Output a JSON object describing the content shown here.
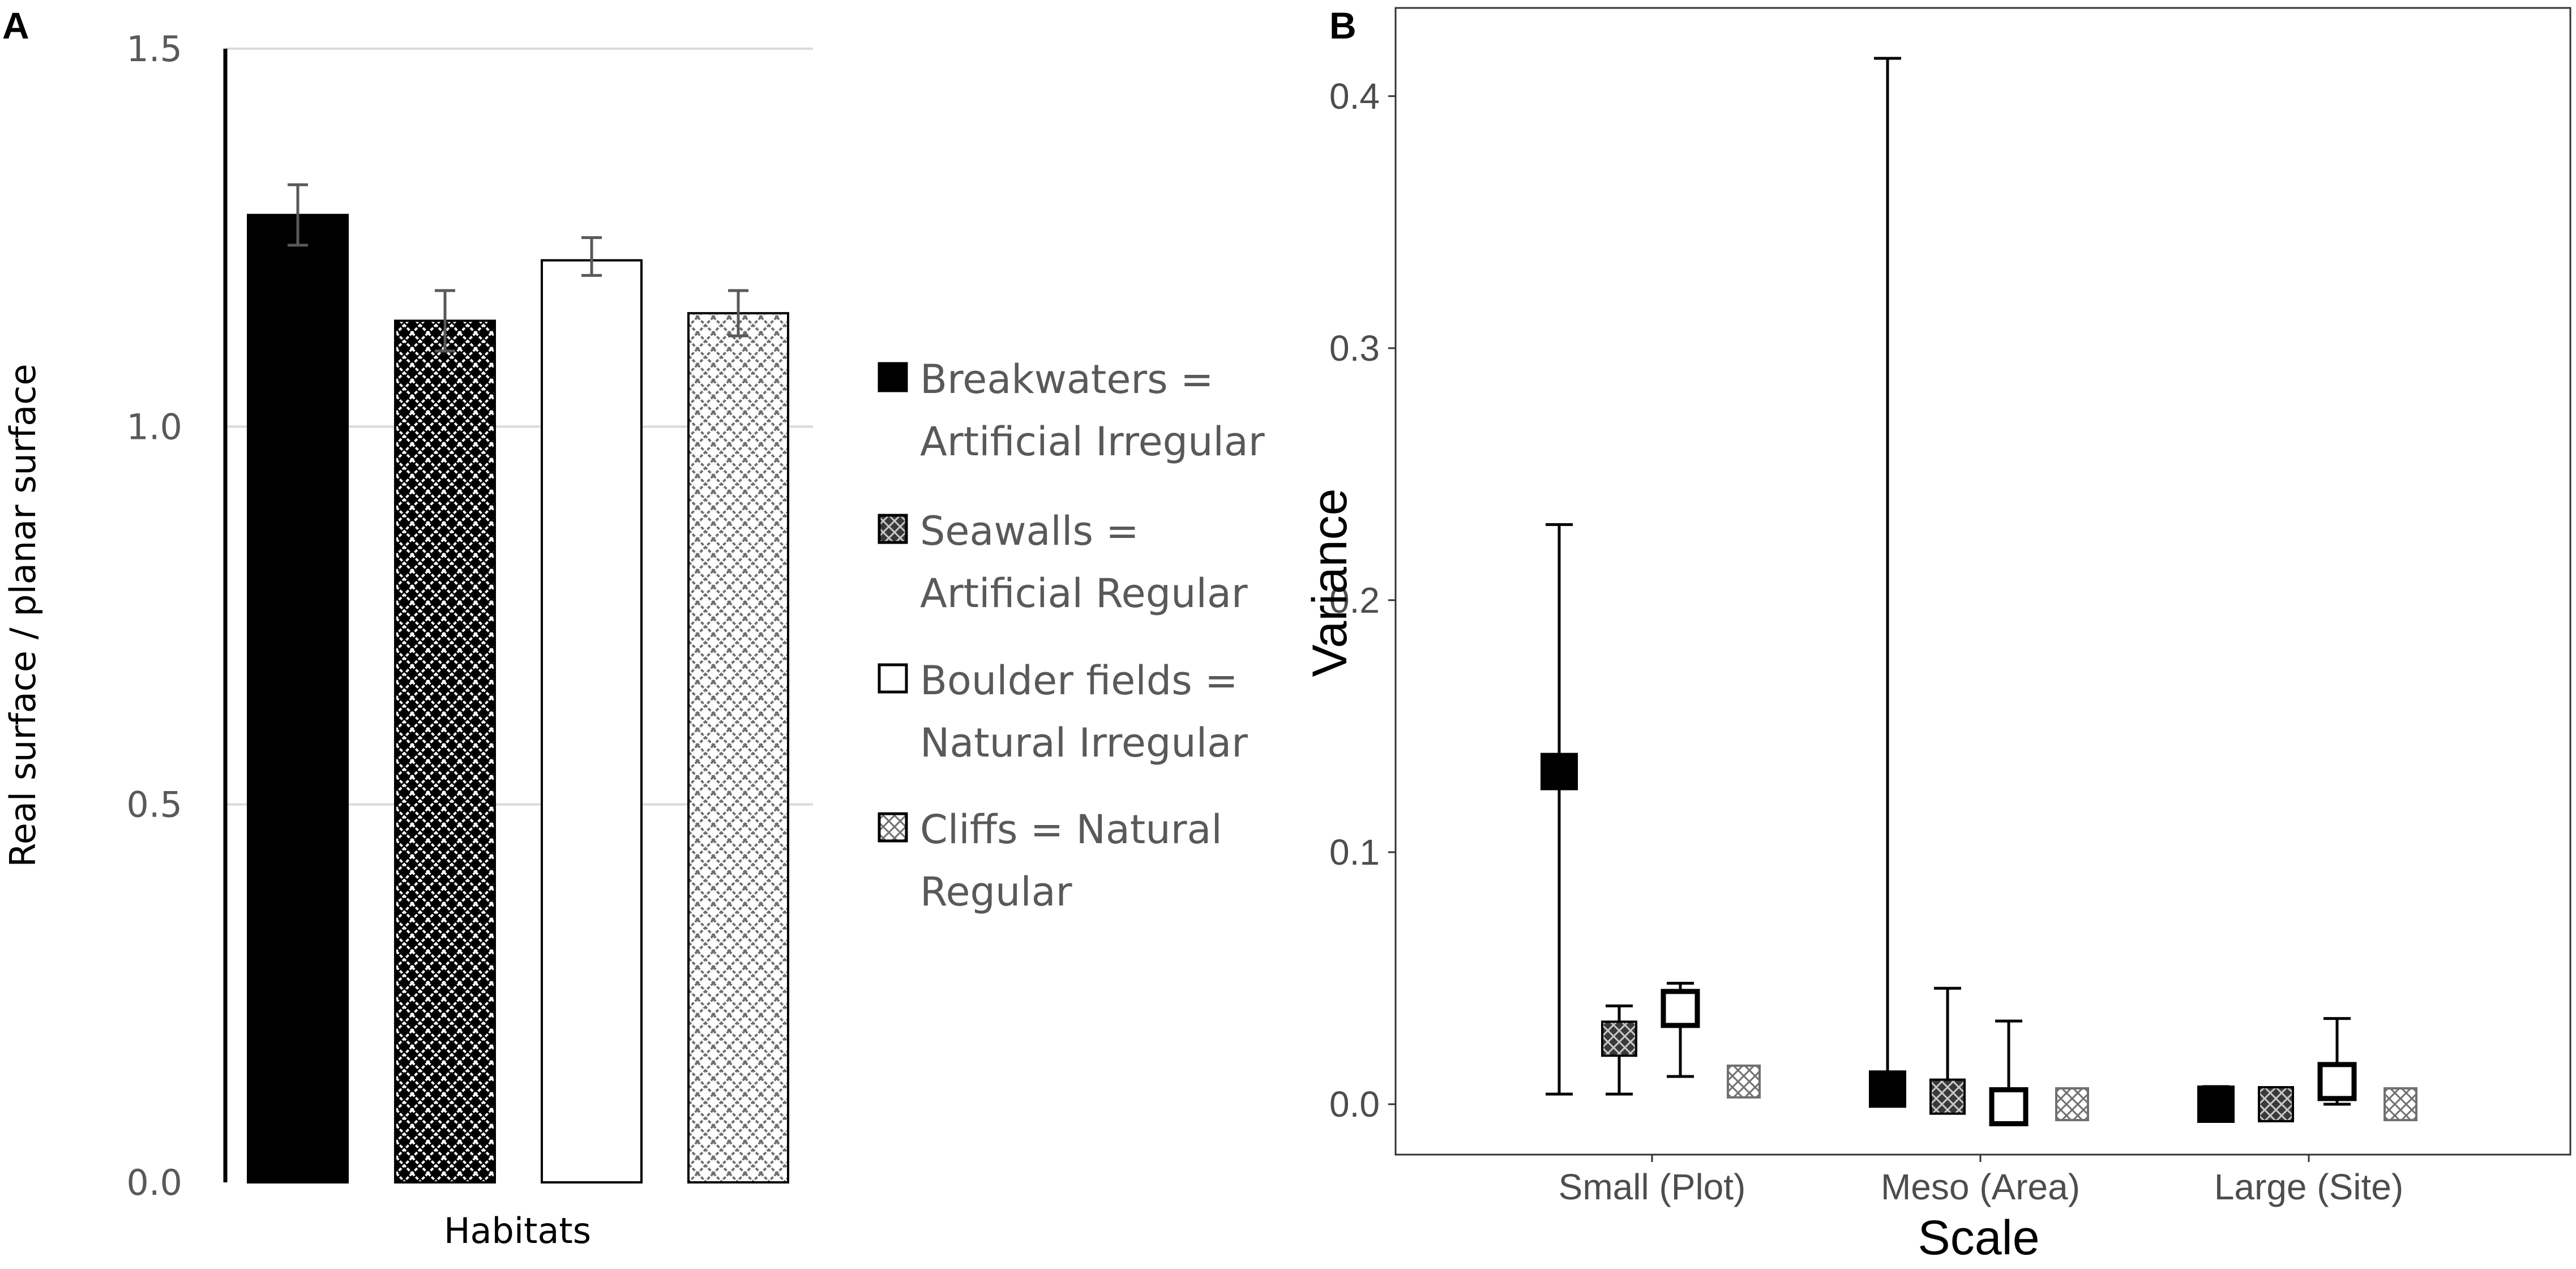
{
  "panels": {
    "a_label": "A",
    "b_label": "B"
  },
  "colors": {
    "black_fill": "#000000",
    "dark_hatch_fill": "#000000",
    "white_fill": "#ffffff",
    "light_hatch_line": "#707070",
    "gridline": "#d9d9d9",
    "error_bar_a": "#595959",
    "error_bar_b": "#000000"
  },
  "chart_data": [
    {
      "type": "bar",
      "panel": "A",
      "title": "",
      "xlabel": "Habitats",
      "ylabel": "Real surface / planar surface",
      "ylim": [
        0,
        1.5
      ],
      "yticks": [
        "0.0",
        "0.5",
        "1.0",
        "1.5"
      ],
      "grid": "horizontal",
      "legend_position": "right",
      "series": [
        {
          "name": "Breakwaters = Artificial Irregular",
          "legend_lines": [
            "Breakwaters =",
            "Artificial Irregular"
          ],
          "fill": "solid-black",
          "value": 1.28,
          "error": [
            1.24,
            1.32
          ]
        },
        {
          "name": "Seawalls = Artificial Regular",
          "legend_lines": [
            "Seawalls =",
            "Artificial Regular"
          ],
          "fill": "dark-crosshatch",
          "value": 1.14,
          "error": [
            1.1,
            1.18
          ]
        },
        {
          "name": "Boulder fields = Natural Irregular",
          "legend_lines": [
            "Boulder fields =",
            "Natural Irregular"
          ],
          "fill": "white",
          "value": 1.22,
          "error": [
            1.2,
            1.25
          ]
        },
        {
          "name": "Cliffs = Natural Regular",
          "legend_lines": [
            "Cliffs = Natural",
            "Regular"
          ],
          "fill": "light-crosshatch",
          "value": 1.15,
          "error": [
            1.12,
            1.18
          ]
        }
      ]
    },
    {
      "type": "scatter",
      "panel": "B",
      "title": "",
      "xlabel": "Scale",
      "ylabel": "Variance",
      "categories": [
        "Small (Plot)",
        "Meso (Area)",
        "Large (Site)"
      ],
      "ylim": [
        -0.02,
        0.435
      ],
      "yticks": [
        "0.0",
        "0.1",
        "0.2",
        "0.3",
        "0.4"
      ],
      "grid": false,
      "series": [
        {
          "habitat": "Breakwaters",
          "marker": "solid-black",
          "values": [
            0.132,
            0.006,
            0.0
          ],
          "upper": [
            0.23,
            0.415,
            0.007
          ],
          "lower": [
            0.004,
            0.006,
            0.0
          ]
        },
        {
          "habitat": "Seawalls",
          "marker": "dark-crosshatch",
          "values": [
            0.026,
            0.003,
            0.0
          ],
          "upper": [
            0.039,
            0.046,
            0.0
          ],
          "lower": [
            0.004,
            0.003,
            0.0
          ]
        },
        {
          "habitat": "Boulder fields",
          "marker": "white",
          "values": [
            0.038,
            -0.001,
            0.009
          ],
          "upper": [
            0.048,
            0.033,
            0.034
          ],
          "lower": [
            0.011,
            -0.001,
            0.0
          ]
        },
        {
          "habitat": "Cliffs",
          "marker": "light-crosshatch",
          "values": [
            0.009,
            0.0,
            0.0
          ],
          "upper": [
            0.009,
            0.0,
            0.0
          ],
          "lower": [
            0.009,
            0.0,
            0.0
          ]
        }
      ]
    }
  ]
}
